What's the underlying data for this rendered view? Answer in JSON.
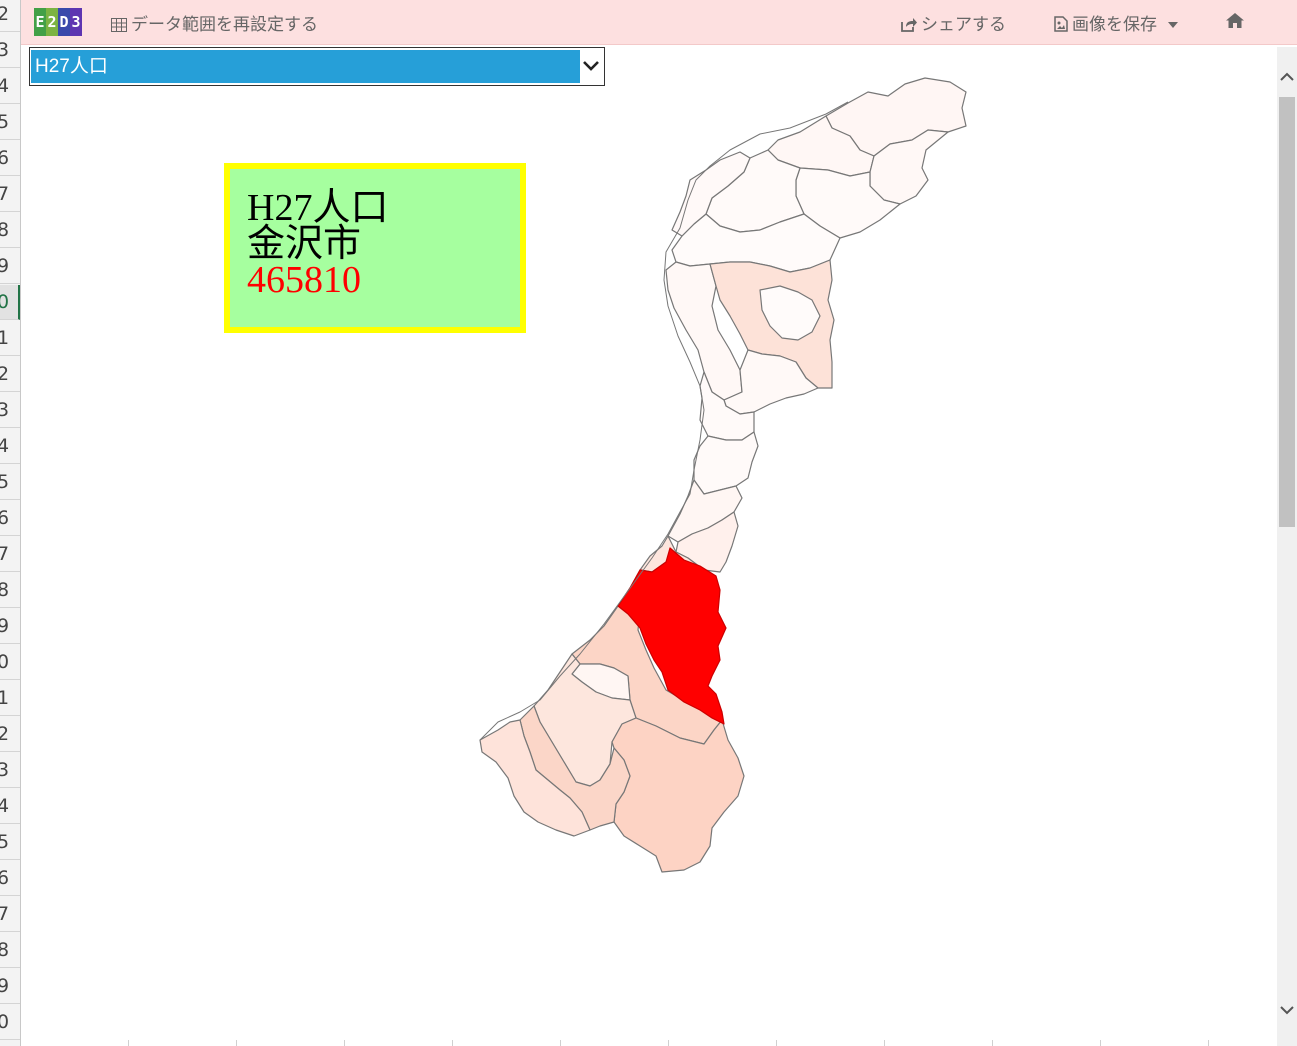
{
  "rows": [
    "2",
    "3",
    "4",
    "5",
    "6",
    "7",
    "8",
    "9",
    "0",
    "1",
    "2",
    "3",
    "4",
    "5",
    "6",
    "7",
    "8",
    "9",
    "0",
    "1",
    "2",
    "3",
    "4",
    "5",
    "6",
    "7",
    "8",
    "9",
    "0"
  ],
  "active_row_index": 8,
  "toolbar": {
    "logo_letters": [
      "E",
      "2",
      "D",
      "3"
    ],
    "logo_colors": [
      "#4caf50",
      "#8bc34a",
      "#3f51b5",
      "#673ab7"
    ],
    "reset_range_label": "データ範囲を再設定する",
    "share_label": "シェアする",
    "save_image_label": "画像を保存"
  },
  "select": {
    "value": "H27人口"
  },
  "info": {
    "title": "H27人口",
    "city": "金沢市",
    "value": "465810"
  },
  "colors": {
    "highlight": "#ff0000",
    "info_bg": "#a6ff9f",
    "info_border": "#ffff00",
    "toolbar_bg": "#fde0e0",
    "select_bg": "#269fd8"
  }
}
